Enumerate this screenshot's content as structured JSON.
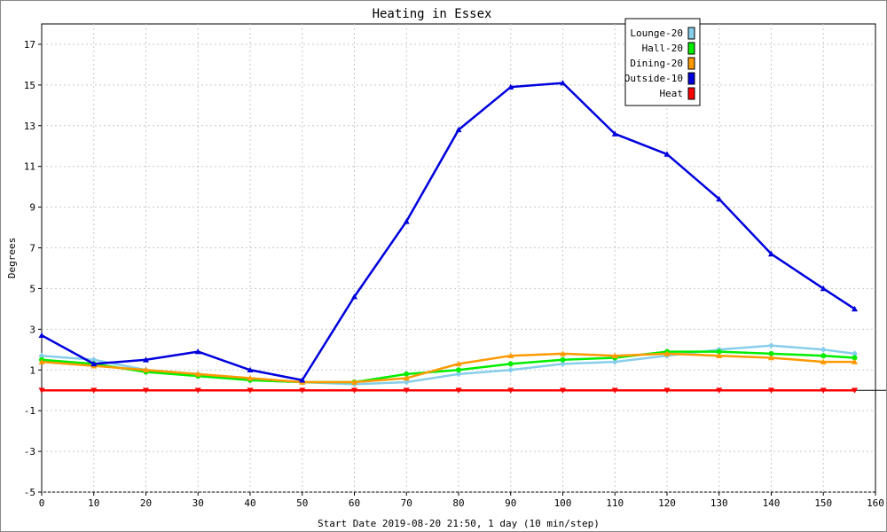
{
  "chart_data": {
    "type": "line",
    "title": "Heating in Essex",
    "xlabel": "Start Date 2019-08-20 21:50, 1 day (10 min/step)",
    "ylabel": "Degrees",
    "xlim": [
      0,
      160
    ],
    "ylim": [
      -5,
      18
    ],
    "xticks": [
      0,
      10,
      20,
      30,
      40,
      50,
      60,
      70,
      80,
      90,
      100,
      110,
      120,
      130,
      140,
      150,
      160
    ],
    "yticks": [
      -5,
      -3,
      -1,
      1,
      3,
      5,
      7,
      9,
      11,
      13,
      15,
      17
    ],
    "grid": true,
    "legend_position": "top-right",
    "x": [
      0,
      10,
      20,
      30,
      40,
      50,
      60,
      70,
      80,
      90,
      100,
      110,
      120,
      130,
      140,
      150,
      156
    ],
    "series": [
      {
        "name": "Lounge-20",
        "color": "#87ceeb",
        "marker": "diamond",
        "values": [
          1.7,
          1.5,
          1.0,
          0.8,
          0.5,
          0.4,
          0.3,
          0.4,
          0.8,
          1.0,
          1.3,
          1.4,
          1.7,
          2.0,
          2.2,
          2.0,
          1.8
        ]
      },
      {
        "name": "Hall-20",
        "color": "#00ee00",
        "marker": "circle",
        "values": [
          1.5,
          1.3,
          0.9,
          0.7,
          0.5,
          0.4,
          0.4,
          0.8,
          1.0,
          1.3,
          1.5,
          1.6,
          1.9,
          1.9,
          1.8,
          1.7,
          1.6
        ]
      },
      {
        "name": "Dining-20",
        "color": "#ff9900",
        "marker": "triangle-up",
        "values": [
          1.4,
          1.2,
          1.0,
          0.8,
          0.6,
          0.4,
          0.4,
          0.6,
          1.3,
          1.7,
          1.8,
          1.7,
          1.8,
          1.7,
          1.6,
          1.4,
          1.4
        ]
      },
      {
        "name": "Outside-10",
        "color": "#0000dd",
        "marker": "triangle-up",
        "values": [
          2.7,
          1.3,
          1.5,
          1.9,
          1.0,
          0.5,
          4.6,
          8.3,
          12.8,
          14.9,
          15.1,
          12.6,
          11.6,
          9.4,
          6.7,
          5.0,
          4.0
        ]
      },
      {
        "name": "Heat",
        "color": "#ff0000",
        "marker": "triangle-down",
        "values": [
          0,
          0,
          0,
          0,
          0,
          0,
          0,
          0,
          0,
          0,
          0,
          0,
          0,
          0,
          0,
          0,
          0
        ]
      }
    ]
  }
}
